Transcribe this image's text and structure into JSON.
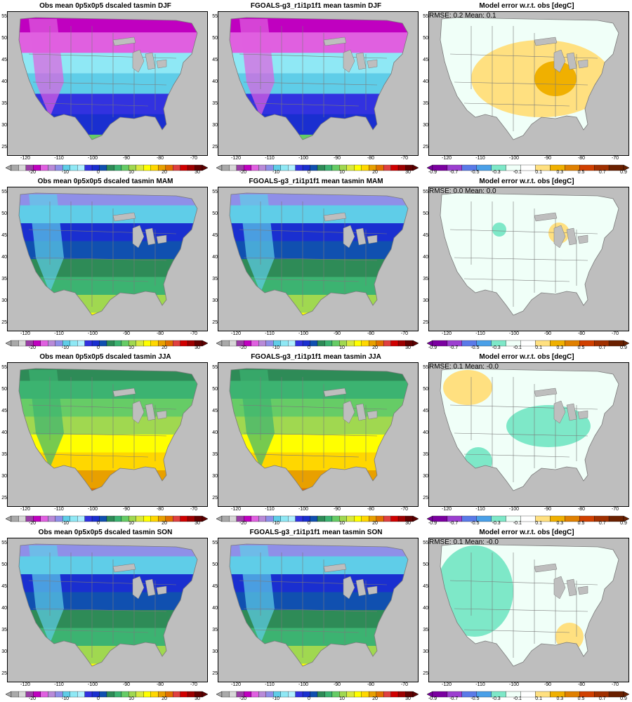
{
  "colors": {
    "land_gray": "#bebebe",
    "boundary": "#7a7a7a",
    "abs_palette": [
      "#a9a9a9",
      "#d7d7d7",
      "#9a3fa6",
      "#c000c0",
      "#e060e0",
      "#b88ad8",
      "#8f8fe8",
      "#5fcde8",
      "#8fe8f5",
      "#b0f0ff",
      "#3232e0",
      "#1a2fd0",
      "#1050b0",
      "#2e8b57",
      "#3cb371",
      "#66cc66",
      "#a0d850",
      "#d8e840",
      "#ffff00",
      "#ffd700",
      "#e8a000",
      "#e07000",
      "#e04040",
      "#d00000",
      "#9c0000",
      "#600000"
    ],
    "diff_palette": [
      "#7b00a0",
      "#9c3fd0",
      "#5a7ae8",
      "#4aa0e8",
      "#7ee8c8",
      "#f0fff8",
      "#ffffff",
      "#ffe080",
      "#f0b000",
      "#e08000",
      "#d04000",
      "#a03000",
      "#6a2000"
    ]
  },
  "rows": [
    {
      "season": "DJF",
      "obs_title": "Obs mean 0p5x0p5 dscaled tasmin DJF",
      "model_title": "FGOALS-g3_r1i1p1f1 mean tasmin DJF",
      "err_title": "Model error w.r.t. obs [degC]",
      "err_stats": "RMSE: 0.2  Mean: 0.1",
      "err_level": 0.1
    },
    {
      "season": "MAM",
      "obs_title": "Obs mean 0p5x0p5 dscaled tasmin MAM",
      "model_title": "FGOALS-g3_r1i1p1f1 mean tasmin MAM",
      "err_title": "Model error w.r.t. obs [degC]",
      "err_stats": "RMSE: 0.0  Mean: 0.0",
      "err_level": 0.0
    },
    {
      "season": "JJA",
      "obs_title": "Obs mean 0p5x0p5 dscaled tasmin JJA",
      "model_title": "FGOALS-g3_r1i1p1f1 mean tasmin JJA",
      "err_title": "Model error w.r.t. obs [degC]",
      "err_stats": "RMSE: 0.1  Mean: -0.0",
      "err_level": -0.0
    },
    {
      "season": "SON",
      "obs_title": "Obs mean 0p5x0p5 dscaled tasmin SON",
      "model_title": "FGOALS-g3_r1i1p1f1 mean tasmin SON",
      "err_title": "Model error w.r.t. obs [degC]",
      "err_stats": "RMSE: 0.1  Mean: -0.0",
      "err_level": -0.0
    }
  ],
  "lat_ticks": [
    "55",
    "50",
    "45",
    "40",
    "35",
    "30",
    "25"
  ],
  "lon_ticks": [
    "-120",
    "-110",
    "-100",
    "-90",
    "-80",
    "-70"
  ],
  "abs_colorbar_labels": [
    "-20",
    "-10",
    "0",
    "10",
    "20",
    "30"
  ],
  "diff_colorbar_labels": [
    "-0.9",
    "-0.7",
    "-0.5",
    "-0.3",
    "-0.1",
    "0.1",
    "0.3",
    "0.5",
    "0.7",
    "0.9"
  ]
}
